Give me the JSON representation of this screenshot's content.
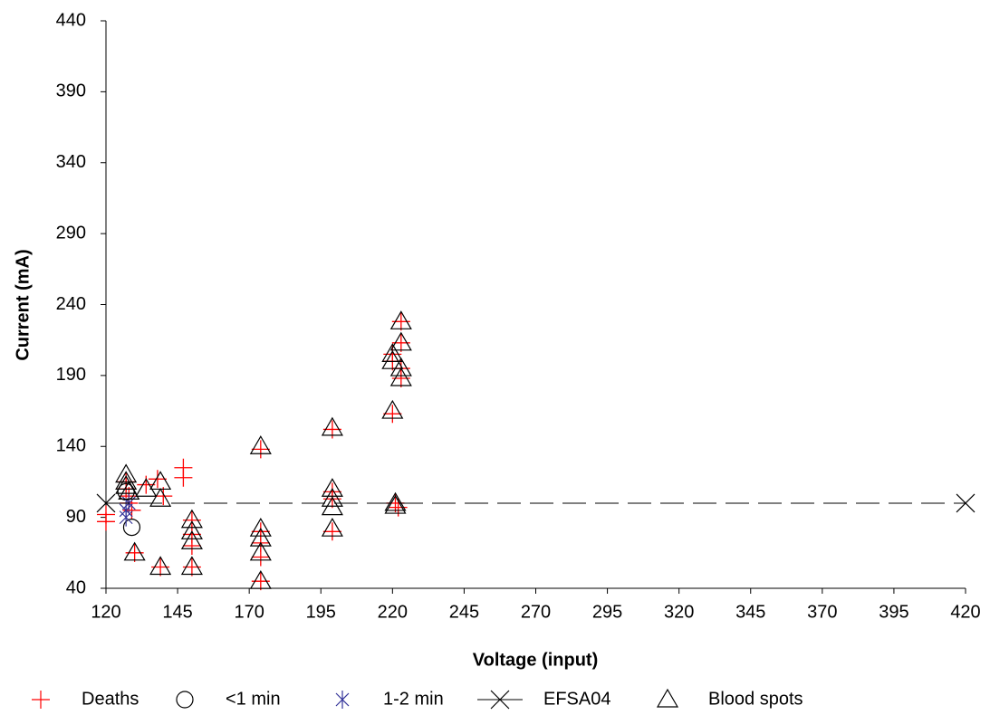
{
  "chart_data": {
    "type": "scatter",
    "x_label": "Voltage (input)",
    "y_label": "Current (mA)",
    "xlim": [
      120,
      420
    ],
    "xticks": [
      120,
      145,
      170,
      195,
      220,
      245,
      270,
      295,
      320,
      345,
      370,
      395,
      420
    ],
    "ylim": [
      40,
      440
    ],
    "yticks": [
      40,
      90,
      140,
      190,
      240,
      290,
      340,
      390,
      440
    ],
    "grid": false,
    "series": [
      {
        "name": "Deaths",
        "color": "#ff0000",
        "marker": "plus",
        "x": [
          120,
          120,
          127,
          127,
          128,
          128,
          129,
          130,
          134,
          138,
          139,
          140,
          147,
          147,
          150,
          150,
          150,
          150,
          174,
          174,
          174,
          174,
          174,
          199,
          199,
          199,
          199,
          220,
          220,
          220,
          221,
          222,
          223,
          223,
          223,
          223
        ],
        "values": [
          87,
          92,
          115,
          110,
          105,
          100,
          95,
          65,
          113,
          117,
          55,
          105,
          125,
          118,
          88,
          78,
          70,
          55,
          138,
          80,
          72,
          62,
          45,
          152,
          108,
          103,
          80,
          205,
          200,
          163,
          100,
          97,
          228,
          213,
          195,
          188
        ]
      },
      {
        "name": "<1 min",
        "color": "#000000",
        "marker": "circle",
        "x": [
          129,
          127
        ],
        "values": [
          83,
          108
        ]
      },
      {
        "name": "1-2 min",
        "color": "#333399",
        "marker": "asterisk",
        "x": [
          127,
          127,
          128
        ],
        "values": [
          95,
          90,
          100
        ]
      },
      {
        "name": "EFSA04",
        "color": "#000000",
        "marker": "x",
        "line": "dashed",
        "x": [
          120,
          420
        ],
        "values": [
          100,
          100
        ]
      },
      {
        "name": "Blood spots",
        "color": "#000000",
        "marker": "triangle",
        "x": [
          127,
          127,
          127,
          128,
          130,
          134,
          139,
          139,
          139,
          150,
          150,
          150,
          150,
          174,
          174,
          174,
          174,
          174,
          199,
          199,
          199,
          199,
          199,
          220,
          220,
          220,
          221,
          221,
          223,
          223,
          223,
          223
        ],
        "values": [
          120,
          115,
          112,
          108,
          65,
          110,
          55,
          115,
          103,
          88,
          80,
          73,
          55,
          140,
          82,
          75,
          65,
          45,
          153,
          110,
          103,
          97,
          82,
          205,
          200,
          165,
          100,
          98,
          213,
          195,
          188,
          228
        ]
      }
    ]
  }
}
